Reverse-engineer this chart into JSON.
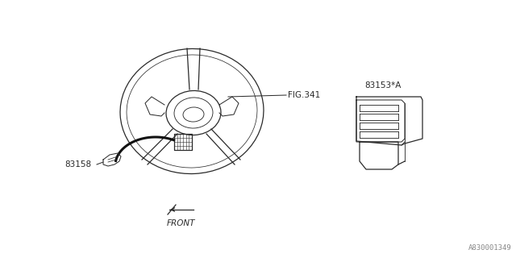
{
  "bg_color": "#ffffff",
  "line_color": "#2a2a2a",
  "text_color": "#2a2a2a",
  "fig_size": [
    6.4,
    3.2
  ],
  "dpi": 100,
  "part_number_bottom_right": "A830001349",
  "labels": {
    "fig341": "FIG.341",
    "p83153": "83153*A",
    "p83158": "83158",
    "front": "FRONT"
  }
}
